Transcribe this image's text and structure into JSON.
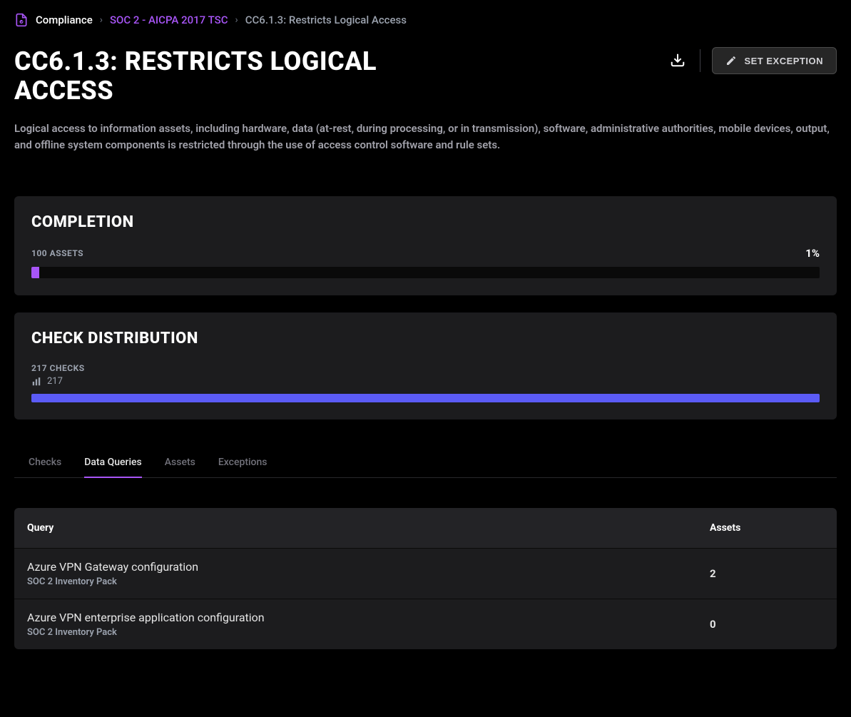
{
  "breadcrumb": {
    "root": "Compliance",
    "framework": "SOC 2 - AICPA 2017 TSC",
    "current": "CC6.1.3: Restricts Logical Access"
  },
  "header": {
    "title": "CC6.1.3: RESTRICTS LOGICAL ACCESS",
    "exception_button": "SET EXCEPTION"
  },
  "description": "Logical access to information assets, including hardware, data (at-rest, during processing, or in transmission), software, administrative authorities, mobile devices, output, and offline system components is restricted through the use of access control software and rule sets.",
  "completion": {
    "title": "COMPLETION",
    "assets_label": "100 ASSETS",
    "percent_label": "1%",
    "percent_value": 1,
    "fill_color": "#a855f7",
    "track_color": "#0a0a0a"
  },
  "distribution": {
    "title": "CHECK DISTRIBUTION",
    "checks_label": "217 CHECKS",
    "checks_count": "217",
    "bar_color": "#5b5bf6"
  },
  "tabs": [
    {
      "label": "Checks",
      "active": false
    },
    {
      "label": "Data Queries",
      "active": true
    },
    {
      "label": "Assets",
      "active": false
    },
    {
      "label": "Exceptions",
      "active": false
    }
  ],
  "table": {
    "columns": {
      "query": "Query",
      "assets": "Assets"
    },
    "rows": [
      {
        "title": "Azure VPN Gateway configuration",
        "sub": "SOC 2 Inventory Pack",
        "assets": "2"
      },
      {
        "title": "Azure VPN enterprise application configuration",
        "sub": "SOC 2 Inventory Pack",
        "assets": "0"
      }
    ]
  },
  "colors": {
    "background": "#000000",
    "card_bg": "#1c1c1e",
    "accent": "#a855f7",
    "text_dim": "#9ca3af"
  }
}
